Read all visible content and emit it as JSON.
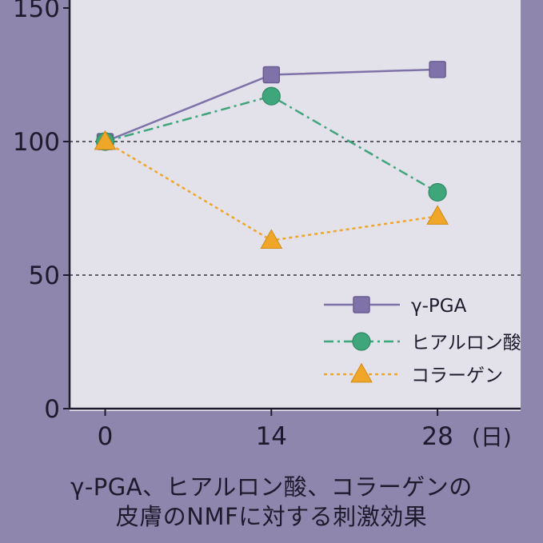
{
  "chart_data": {
    "type": "line",
    "title": "",
    "xlabel": "",
    "ylabel": "",
    "x": [
      0,
      14,
      28
    ],
    "x_tick_labels": [
      "0",
      "14",
      "28"
    ],
    "x_unit": "(日)",
    "xlim": [
      -3,
      35
    ],
    "ylim": [
      0,
      150
    ],
    "y_ticks": [
      0,
      50,
      100,
      150
    ],
    "y_tick_labels": [
      "0",
      "50",
      "100",
      "150"
    ],
    "reference_lines": [
      50,
      100
    ],
    "legend_position": "right",
    "series": [
      {
        "name": "γ-PGA",
        "values": [
          100,
          125,
          127
        ],
        "color": "#7f72a8",
        "marker": "square",
        "line_style": "solid"
      },
      {
        "name": "ヒアルロン酸",
        "values": [
          100,
          117,
          81
        ],
        "color": "#3fa57a",
        "marker": "circle",
        "line_style": "dashdot"
      },
      {
        "name": "コラーゲン",
        "values": [
          100,
          63,
          72
        ],
        "color": "#f0a628",
        "marker": "triangle",
        "line_style": "dotted"
      }
    ]
  },
  "caption": {
    "line1": "γ-PGA、ヒアルロン酸、コラーゲンの",
    "line2": "皮膚のNMFに対する刺激効果"
  },
  "colors": {
    "page_background": "#8f86ad",
    "plot_background": "#e3e1ea",
    "axis": "#1c1a2c",
    "text": "#1c1a2c"
  }
}
